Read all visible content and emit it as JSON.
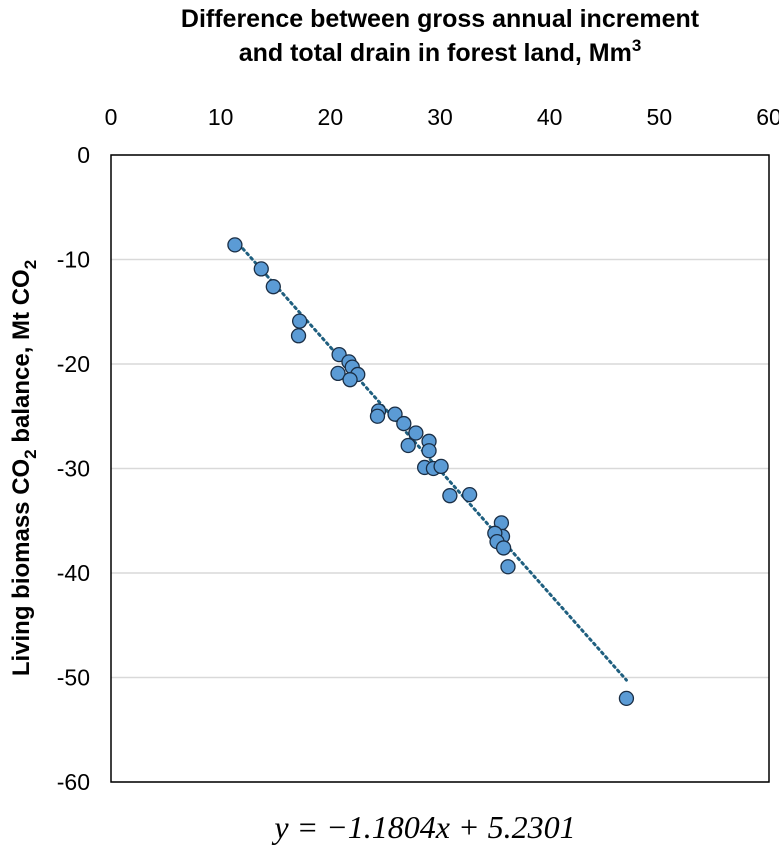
{
  "chart_data": {
    "type": "scatter",
    "title_line1": "Difference between gross annual increment",
    "title_line2": "and total drain in forest land, Mm",
    "title_sup": "3",
    "ylabel_part1": "Living biomass CO",
    "ylabel_sub1": "2",
    "ylabel_part2": " balance, Mt CO",
    "ylabel_sub2": "2",
    "equation": "y = −1.1804x + 5.2301",
    "xlim": [
      0,
      60
    ],
    "ylim": [
      -60,
      0
    ],
    "xticks": [
      0,
      10,
      20,
      30,
      40,
      50,
      60
    ],
    "yticks": [
      0,
      -10,
      -20,
      -30,
      -40,
      -50,
      -60
    ],
    "x_axis_position": "top",
    "grid": "horizontal",
    "trendline": {
      "slope": -1.1804,
      "intercept": 5.2301,
      "style": "dotted"
    },
    "marker_color": "#5b9bd5",
    "trend_color": "#1f5f7f",
    "points": [
      {
        "x": 11.3,
        "y": -8.6
      },
      {
        "x": 13.7,
        "y": -10.9
      },
      {
        "x": 14.8,
        "y": -12.6
      },
      {
        "x": 17.2,
        "y": -15.9
      },
      {
        "x": 17.1,
        "y": -17.3
      },
      {
        "x": 20.8,
        "y": -19.1
      },
      {
        "x": 21.7,
        "y": -19.8
      },
      {
        "x": 22.0,
        "y": -20.3
      },
      {
        "x": 22.5,
        "y": -21.0
      },
      {
        "x": 20.7,
        "y": -20.9
      },
      {
        "x": 21.8,
        "y": -21.5
      },
      {
        "x": 24.4,
        "y": -24.5
      },
      {
        "x": 24.3,
        "y": -25.0
      },
      {
        "x": 25.9,
        "y": -24.8
      },
      {
        "x": 26.7,
        "y": -25.7
      },
      {
        "x": 27.1,
        "y": -27.8
      },
      {
        "x": 27.8,
        "y": -26.6
      },
      {
        "x": 29.0,
        "y": -27.4
      },
      {
        "x": 29.0,
        "y": -28.3
      },
      {
        "x": 28.6,
        "y": -29.9
      },
      {
        "x": 29.4,
        "y": -30.0
      },
      {
        "x": 30.1,
        "y": -29.8
      },
      {
        "x": 30.9,
        "y": -32.6
      },
      {
        "x": 32.7,
        "y": -32.5
      },
      {
        "x": 35.6,
        "y": -35.2
      },
      {
        "x": 35.7,
        "y": -36.5
      },
      {
        "x": 35.0,
        "y": -36.2
      },
      {
        "x": 35.2,
        "y": -37.0
      },
      {
        "x": 35.8,
        "y": -37.6
      },
      {
        "x": 36.2,
        "y": -39.4
      },
      {
        "x": 47.0,
        "y": -52.0
      }
    ]
  }
}
